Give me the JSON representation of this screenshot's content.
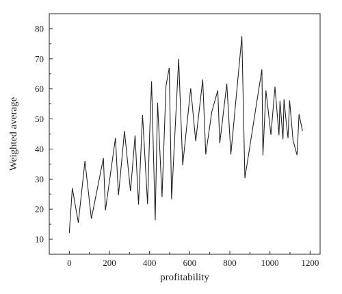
{
  "chart_data": {
    "type": "line",
    "title": "",
    "xlabel": "profitability",
    "ylabel": "Weighted average",
    "xlim": [
      -100,
      1250
    ],
    "ylim": [
      5,
      85
    ],
    "xticks": [
      0,
      200,
      400,
      600,
      800,
      1000,
      1200
    ],
    "yticks": [
      10,
      20,
      30,
      40,
      50,
      60,
      70,
      80
    ],
    "grid": false,
    "colors": {
      "line": "#222222",
      "axis": "#222222"
    },
    "series": [
      {
        "x": [
          0,
          15,
          45,
          78,
          110,
          170,
          180,
          230,
          245,
          275,
          305,
          328,
          345,
          365,
          372,
          390,
          400,
          410,
          428,
          440,
          462,
          482,
          498,
          510,
          545,
          565,
          605,
          630,
          665,
          680,
          710,
          740,
          750,
          785,
          805,
          860,
          875,
          960,
          965,
          980,
          1005,
          1025,
          1045,
          1050,
          1065,
          1070,
          1080,
          1090,
          1098,
          1115,
          1135,
          1145,
          1162
        ],
        "y": [
          12,
          27,
          15.5,
          36,
          16.8,
          37,
          19.6,
          43.7,
          24.6,
          46,
          26,
          44.5,
          21.5,
          51.3,
          43,
          21.7,
          44.5,
          62.5,
          16.3,
          55.4,
          24,
          61,
          67,
          23.3,
          70,
          34.6,
          60.2,
          42.6,
          63.1,
          38.2,
          52.3,
          59.5,
          41.9,
          61.7,
          38.2,
          77.5,
          30.3,
          66.5,
          37.9,
          59.5,
          44.7,
          60.7,
          44.6,
          56,
          43.2,
          56.5,
          49.7,
          43.6,
          56.2,
          42.9,
          38,
          51.6,
          46
        ]
      }
    ]
  }
}
